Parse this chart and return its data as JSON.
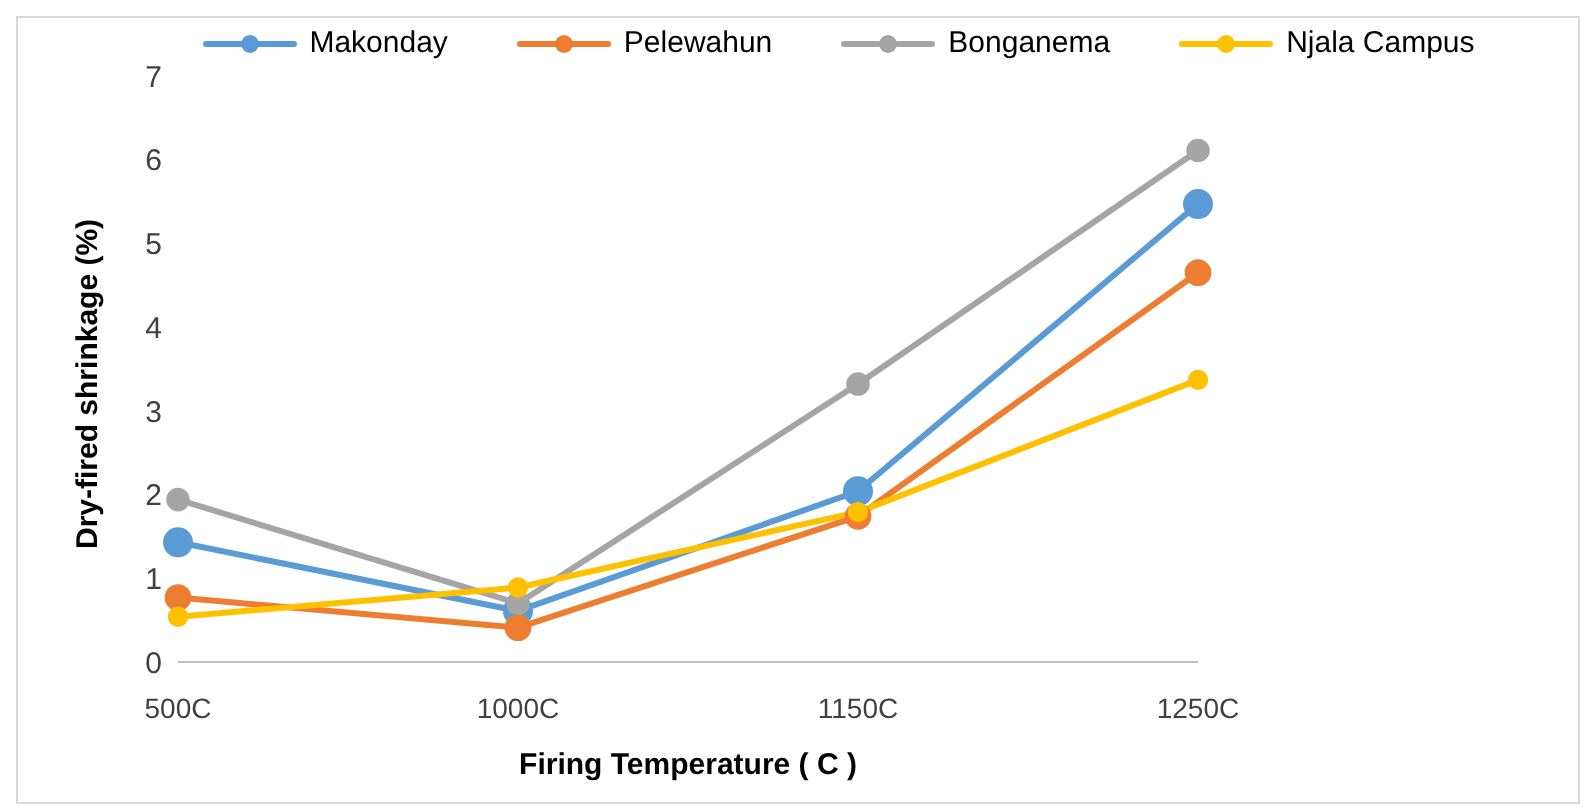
{
  "chart_data": {
    "type": "line",
    "xlabel": "Firing Temperature ( C )",
    "ylabel": "Dry-fired shrinkage (%)",
    "categories": [
      "500C",
      "1000C",
      "1150C",
      "1250C"
    ],
    "series": [
      {
        "name": "Makonday",
        "color": "#5b9bd5",
        "values": [
          1.43,
          0.61,
          2.04,
          5.47
        ]
      },
      {
        "name": "Pelewahun",
        "color": "#ed7d31",
        "values": [
          0.77,
          0.41,
          1.74,
          4.65
        ]
      },
      {
        "name": "Bonganema",
        "color": "#a5a5a5",
        "values": [
          1.94,
          0.7,
          3.32,
          6.11
        ]
      },
      {
        "name": "Njala Campus",
        "color": "#ffc000",
        "values": [
          0.54,
          0.89,
          1.79,
          3.37
        ]
      }
    ],
    "ylim": [
      0,
      7
    ],
    "yticks": [
      0,
      1,
      2,
      3,
      4,
      5,
      6,
      7
    ],
    "grid": false,
    "legend": "top",
    "marker": "circle",
    "line_style": "solid"
  }
}
